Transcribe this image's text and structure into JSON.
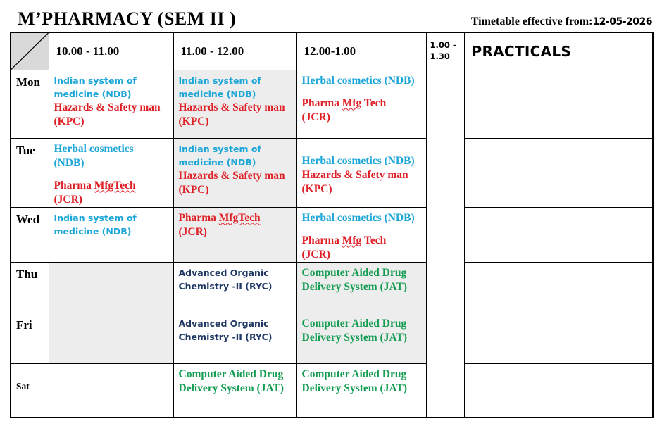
{
  "page": {
    "title": "M’PHARMACY (SEM II )",
    "effective_label": "Timetable effective from:",
    "effective_date": "12-05-2026"
  },
  "colors": {
    "cyan_course": "#1BA6D8",
    "red_course": "#DF1F26",
    "navy_course": "#1F3864",
    "green_course": "#149D52",
    "cell_gray": "#EDEDED",
    "corner_gray": "#D9D9D9",
    "border": "#000000"
  },
  "columns": {
    "slot1": "10.00 - 11.00",
    "slot2": "11.00 - 12.00",
    "slot3": "12.00-1.00",
    "lunch": "1.00 - 1.30",
    "practicals": "PRACTICALS"
  },
  "rows": [
    {
      "day": "Mon",
      "cells": [
        {
          "bg": "white",
          "paras": [
            {
              "style": "cyan-sans",
              "lines": [
                [
                  "Indian system of"
                ],
                [
                  "medicine (NDB)"
                ]
              ]
            },
            {
              "style": "red-serif",
              "lines": [
                [
                  "Hazards & Safety man"
                ],
                [
                  "(KPC)"
                ]
              ]
            }
          ]
        },
        {
          "bg": "gray",
          "paras": [
            {
              "style": "cyan-sans",
              "lines": [
                [
                  "Indian system of"
                ],
                [
                  "medicine (NDB)"
                ]
              ]
            },
            {
              "style": "red-serif",
              "lines": [
                [
                  "Hazards & Safety man"
                ],
                [
                  "(KPC)"
                ]
              ]
            }
          ]
        },
        {
          "bg": "white",
          "paras": [
            {
              "style": "cyan-serif",
              "lines": [
                [
                  "Herbal cosmetics (NDB)"
                ]
              ]
            },
            {
              "gap": true
            },
            {
              "style": "red-serif",
              "lines": [
                [
                  {
                    "t": "Pharma "
                  },
                  {
                    "t": "Mfg",
                    "w": true
                  },
                  {
                    "t": " Tech"
                  }
                ],
                [
                  "(JCR)"
                ]
              ]
            }
          ]
        }
      ]
    },
    {
      "day": "Tue",
      "cells": [
        {
          "bg": "white",
          "paras": [
            {
              "style": "cyan-serif",
              "lines": [
                [
                  "Herbal cosmetics"
                ],
                [
                  "(NDB)"
                ]
              ]
            },
            {
              "gap": true
            },
            {
              "style": "red-serif",
              "lines": [
                [
                  {
                    "t": "Pharma "
                  },
                  {
                    "t": "MfgTech",
                    "w": true
                  }
                ],
                [
                  "(JCR)"
                ]
              ]
            }
          ]
        },
        {
          "bg": "gray",
          "paras": [
            {
              "style": "cyan-sans",
              "lines": [
                [
                  "Indian system of"
                ],
                [
                  "medicine (NDB)"
                ]
              ]
            },
            {
              "style": "red-serif",
              "lines": [
                [
                  "Hazards & Safety man"
                ],
                [
                  "(KPC)"
                ]
              ]
            }
          ]
        },
        {
          "bg": "white",
          "padtop": true,
          "paras": [
            {
              "style": "cyan-serif",
              "lines": [
                [
                  "Herbal cosmetics (NDB)"
                ]
              ]
            },
            {
              "style": "red-serif",
              "lines": [
                [
                  "Hazards & Safety man"
                ],
                [
                  "(KPC)"
                ]
              ]
            }
          ]
        }
      ]
    },
    {
      "day": "Wed",
      "cells": [
        {
          "bg": "white",
          "paras": [
            {
              "style": "cyan-sans",
              "lines": [
                [
                  "Indian system of"
                ],
                [
                  "medicine (NDB)"
                ]
              ]
            }
          ]
        },
        {
          "bg": "gray",
          "paras": [
            {
              "style": "red-serif",
              "lines": [
                [
                  {
                    "t": "Pharma "
                  },
                  {
                    "t": "MfgTech",
                    "w": true
                  }
                ],
                [
                  "(JCR)"
                ]
              ]
            }
          ]
        },
        {
          "bg": "white",
          "paras": [
            {
              "style": "cyan-serif",
              "lines": [
                [
                  "Herbal cosmetics (NDB)"
                ]
              ]
            },
            {
              "gap": true
            },
            {
              "style": "red-serif",
              "lines": [
                [
                  {
                    "t": "Pharma "
                  },
                  {
                    "t": "Mfg",
                    "w": true
                  },
                  {
                    "t": " Tech"
                  }
                ],
                [
                  "(JCR)"
                ]
              ]
            }
          ]
        }
      ]
    },
    {
      "day": "Thu",
      "cells": [
        {
          "bg": "gray",
          "paras": []
        },
        {
          "bg": "white",
          "paras": [
            {
              "style": "navy-sans",
              "lines": [
                [
                  "Advanced Organic"
                ],
                [
                  "Chemistry -II (RYC)"
                ]
              ]
            }
          ]
        },
        {
          "bg": "gray",
          "paras": [
            {
              "style": "green-serif",
              "lines": [
                [
                  "Computer Aided Drug"
                ],
                [
                  "Delivery System (JAT)"
                ]
              ]
            }
          ]
        }
      ]
    },
    {
      "day": "Fri",
      "cells": [
        {
          "bg": "gray",
          "paras": []
        },
        {
          "bg": "white",
          "paras": [
            {
              "style": "navy-sans",
              "lines": [
                [
                  "Advanced Organic"
                ],
                [
                  "Chemistry -II (RYC)"
                ]
              ]
            }
          ]
        },
        {
          "bg": "gray",
          "paras": [
            {
              "style": "green-serif",
              "lines": [
                [
                  "Computer Aided Drug"
                ],
                [
                  "Delivery System (JAT)"
                ]
              ]
            }
          ]
        }
      ]
    },
    {
      "day": "Sat",
      "small_day": true,
      "cells": [
        {
          "bg": "white",
          "paras": []
        },
        {
          "bg": "white",
          "paras": [
            {
              "style": "green-serif",
              "lines": [
                [
                  "Computer Aided Drug"
                ],
                [
                  "Delivery System (JAT)"
                ]
              ]
            }
          ]
        },
        {
          "bg": "white",
          "paras": [
            {
              "style": "green-serif",
              "lines": [
                [
                  "Computer Aided Drug"
                ],
                [
                  "Delivery System (JAT)"
                ]
              ]
            }
          ]
        }
      ]
    }
  ]
}
